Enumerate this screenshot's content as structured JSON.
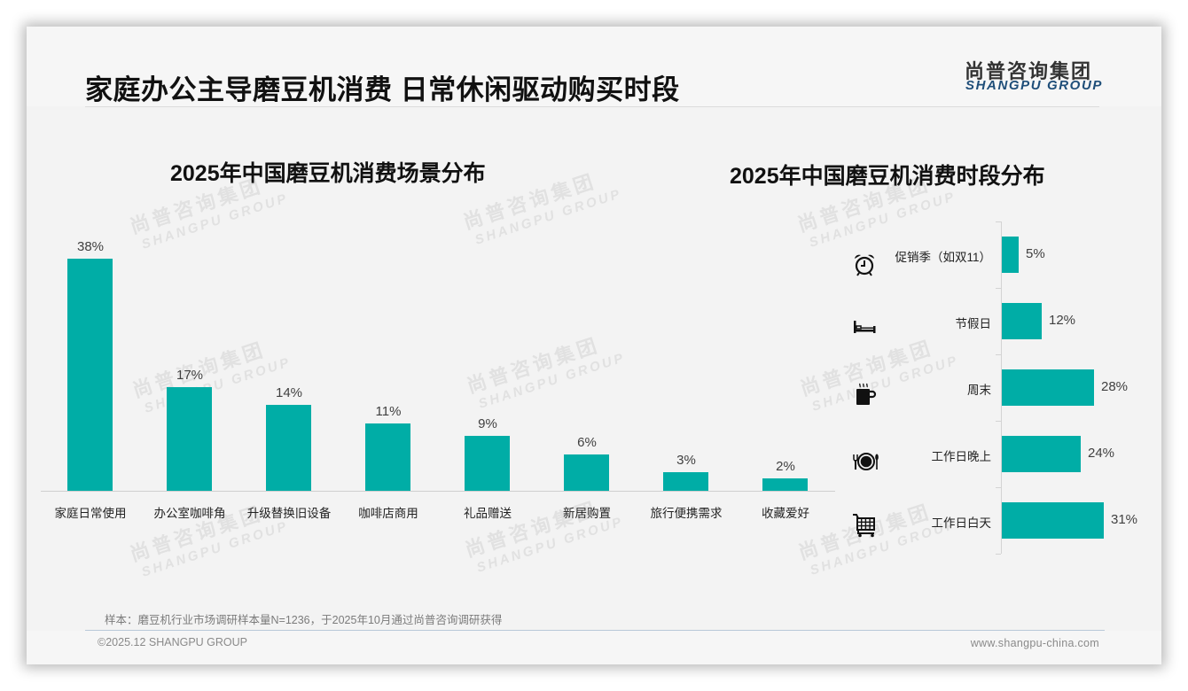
{
  "header": {
    "title": "家庭办公主导磨豆机消费 日常休闲驱动购买时段",
    "logo_cn": "尚普咨询集团",
    "logo_en": "SHANGPU GROUP"
  },
  "watermark": {
    "cn": "尚普咨询集团",
    "en": "SHANGPU GROUP"
  },
  "colors": {
    "bar": "#00ada6",
    "logo_en": "#1f4e79",
    "text": "#111111"
  },
  "left_chart": {
    "title": "2025年中国磨豆机消费场景分布",
    "items": [
      {
        "label": "家庭日常使用",
        "value": 38,
        "value_label": "38%"
      },
      {
        "label": "办公室咖啡角",
        "value": 17,
        "value_label": "17%"
      },
      {
        "label": "升级替换旧设备",
        "value": 14,
        "value_label": "14%"
      },
      {
        "label": "咖啡店商用",
        "value": 11,
        "value_label": "11%"
      },
      {
        "label": "礼品赠送",
        "value": 9,
        "value_label": "9%"
      },
      {
        "label": "新居购置",
        "value": 6,
        "value_label": "6%"
      },
      {
        "label": "旅行便携需求",
        "value": 3,
        "value_label": "3%"
      },
      {
        "label": "收藏爱好",
        "value": 2,
        "value_label": "2%"
      }
    ]
  },
  "right_chart": {
    "title": "2025年中国磨豆机消费时段分布",
    "items": [
      {
        "label": "促销季（如双11）",
        "value": 5,
        "value_label": "5%",
        "icon": "alarm-clock-icon"
      },
      {
        "label": "节假日",
        "value": 12,
        "value_label": "12%",
        "icon": "bed-icon"
      },
      {
        "label": "周末",
        "value": 28,
        "value_label": "28%",
        "icon": "hot-coffee-cup-icon"
      },
      {
        "label": "工作日晚上",
        "value": 24,
        "value_label": "24%",
        "icon": "plate-cutlery-icon"
      },
      {
        "label": "工作日白天",
        "value": 31,
        "value_label": "31%",
        "icon": "shopping-cart-icon"
      }
    ]
  },
  "footer": {
    "note": "样本：磨豆机行业市场调研样本量N=1236，于2025年10月通过尚普咨询调研获得",
    "copyright": "©2025.12 SHANGPU GROUP",
    "website": "www.shangpu-china.com"
  },
  "chart_data": [
    {
      "type": "bar",
      "title": "2025年中国磨豆机消费场景分布",
      "categories": [
        "家庭日常使用",
        "办公室咖啡角",
        "升级替换旧设备",
        "咖啡店商用",
        "礼品赠送",
        "新居购置",
        "旅行便携需求",
        "收藏爱好"
      ],
      "values": [
        38,
        17,
        14,
        11,
        9,
        6,
        3,
        2
      ],
      "unit": "%",
      "xlabel": "",
      "ylabel": "",
      "grid": false,
      "legend": "none"
    },
    {
      "type": "bar",
      "orientation": "horizontal",
      "title": "2025年中国磨豆机消费时段分布",
      "categories": [
        "促销季（如双11）",
        "节假日",
        "周末",
        "工作日晚上",
        "工作日白天"
      ],
      "values": [
        5,
        12,
        28,
        24,
        31
      ],
      "unit": "%",
      "xlabel": "",
      "ylabel": "",
      "grid": false,
      "legend": "none"
    }
  ]
}
